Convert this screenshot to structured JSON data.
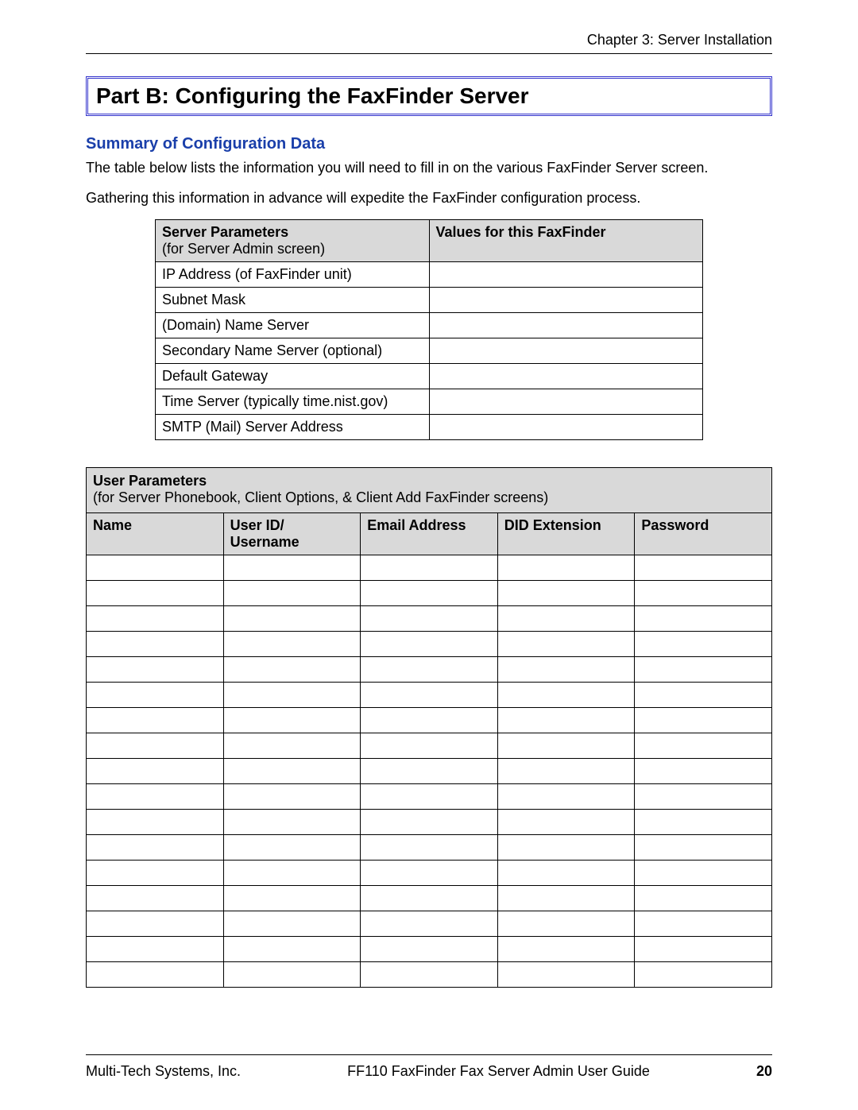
{
  "header": {
    "chapter": "Chapter 3:  Server Installation"
  },
  "title": "Part B: Configuring the FaxFinder Server",
  "sub_heading": "Summary of Configuration Data",
  "intro_line1": "The table below lists the information you will need to fill in on the various FaxFinder Server screen.",
  "intro_line2": "Gathering this information in advance will expedite the FaxFinder configuration process.",
  "server_table": {
    "header_left_bold": "Server Parameters",
    "header_left_note": "(for Server Admin screen)",
    "header_right_bold": "Values for this FaxFinder",
    "rows": [
      "IP Address (of FaxFinder unit)",
      "Subnet Mask",
      "(Domain) Name Server",
      "Secondary Name Server (optional)",
      "Default Gateway",
      "Time Server (typically time.nist.gov)",
      "SMTP (Mail) Server Address"
    ]
  },
  "user_table": {
    "section_bold": "User Parameters",
    "section_note": "(for Server Phonebook, Client Options, & Client Add FaxFinder screens)",
    "columns": {
      "c1": "Name",
      "c2a": "User ID/",
      "c2b": "Username",
      "c3": "Email Address",
      "c4": "DID Extension",
      "c5": "Password"
    },
    "blank_row_count": 17
  },
  "footer": {
    "left": "Multi-Tech Systems, Inc.",
    "center": "FF110 FaxFinder Fax Server Admin User Guide",
    "page": "20"
  },
  "colors": {
    "title_border": "#3333cc",
    "sub_heading": "#1a3faa",
    "table_header_bg": "#d9d9d9",
    "text": "#000000",
    "background": "#ffffff"
  }
}
